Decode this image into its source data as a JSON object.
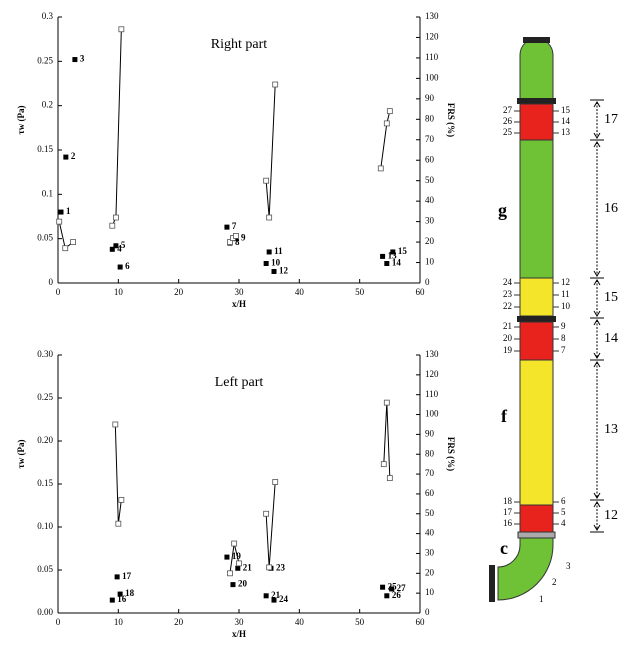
{
  "chart_data": [
    {
      "type": "scatter",
      "title": "Right part",
      "x_label": "x/H",
      "y_label": "τw (Pa)",
      "y2_label": "FRS (%)",
      "xlim": [
        0,
        60
      ],
      "xticks": [
        0,
        10,
        20,
        30,
        40,
        50,
        60
      ],
      "ylim": [
        0,
        0.3
      ],
      "yticks": [
        0,
        0.05,
        0.1,
        0.15,
        0.2,
        0.25,
        0.3
      ],
      "y2lim": [
        0,
        130
      ],
      "y2ticks": [
        0,
        10,
        20,
        30,
        40,
        50,
        60,
        70,
        80,
        90,
        100,
        110,
        120,
        130
      ],
      "series": [
        {
          "marker": "filled",
          "color": "#000000",
          "x": [
            0.5,
            1.3,
            2.8,
            9.0,
            9.6,
            10.3,
            28.0,
            28.5,
            29.5,
            34.5,
            35.0,
            35.8,
            53.8,
            54.5,
            55.5
          ],
          "values": [
            0.08,
            0.142,
            0.252,
            0.038,
            0.042,
            0.018,
            0.063,
            0.045,
            0.05,
            0.022,
            0.035,
            0.013,
            0.03,
            0.022,
            0.035
          ],
          "point_labels": [
            "1",
            "2",
            "3",
            "4",
            "5",
            "6",
            "7",
            "8",
            "9",
            "10",
            "11",
            "12",
            "13",
            "14",
            "15"
          ]
        },
        {
          "marker": "open",
          "axis": "y2",
          "line": true,
          "color": "#000000",
          "x": [
            0.2,
            1.2,
            2.5
          ],
          "values": [
            30,
            17,
            20
          ]
        },
        {
          "marker": "open",
          "axis": "y2",
          "line": true,
          "color": "#000000",
          "x": [
            9.0,
            9.6,
            10.5
          ],
          "values": [
            28,
            32,
            124
          ]
        },
        {
          "marker": "open",
          "axis": "y2",
          "line": true,
          "color": "#000000",
          "x": [
            28.5,
            29.0,
            29.5
          ],
          "values": [
            20,
            22,
            23
          ]
        },
        {
          "marker": "open",
          "axis": "y2",
          "line": true,
          "color": "#000000",
          "x": [
            34.5,
            35.0,
            36.0
          ],
          "values": [
            50,
            32,
            97
          ]
        },
        {
          "marker": "open",
          "axis": "y2",
          "line": true,
          "color": "#000000",
          "x": [
            53.5,
            54.5,
            55.0
          ],
          "values": [
            56,
            78,
            84
          ]
        }
      ]
    },
    {
      "type": "scatter",
      "title": "Left part",
      "x_label": "x/H",
      "y_label": "τw (Pa)",
      "y2_label": "FRS (%)",
      "xlim": [
        0,
        60
      ],
      "xticks": [
        0,
        10,
        20,
        30,
        40,
        50,
        60
      ],
      "ylim": [
        0,
        0.3
      ],
      "yticks": [
        {
          "value": 0,
          "label": "0.00"
        },
        {
          "value": 0.05,
          "label": "0.05"
        },
        {
          "value": 0.1,
          "label": "0.10"
        },
        {
          "value": 0.15,
          "label": "0.15"
        },
        {
          "value": 0.2,
          "label": "0.20"
        },
        {
          "value": 0.25,
          "label": "0.25"
        },
        {
          "value": 0.3,
          "label": "0.30"
        }
      ],
      "y2lim": [
        0,
        130
      ],
      "y2ticks": [
        0,
        10,
        20,
        30,
        40,
        50,
        60,
        70,
        80,
        90,
        100,
        110,
        120,
        130
      ],
      "series": [
        {
          "marker": "filled",
          "color": "#000000",
          "x": [
            9.0,
            9.8,
            10.3,
            28.0,
            29.0,
            29.8,
            34.5,
            35.3,
            35.8,
            53.8,
            54.5,
            55.3
          ],
          "values": [
            0.015,
            0.042,
            0.022,
            0.065,
            0.033,
            0.052,
            0.02,
            0.052,
            0.015,
            0.03,
            0.02,
            0.028
          ],
          "point_labels": [
            "16",
            "17",
            "18",
            "19",
            "20",
            "21",
            "21",
            "23",
            "24",
            "25",
            "26",
            "27"
          ]
        },
        {
          "marker": "open",
          "axis": "y2",
          "line": true,
          "color": "#000000",
          "x": [
            9.5,
            10.0,
            10.5
          ],
          "values": [
            95,
            45,
            57
          ]
        },
        {
          "marker": "open",
          "axis": "y2",
          "line": true,
          "color": "#000000",
          "x": [
            28.5,
            29.2,
            30.0
          ],
          "values": [
            20,
            35,
            25
          ]
        },
        {
          "marker": "open",
          "axis": "y2",
          "line": true,
          "color": "#000000",
          "x": [
            34.5,
            35.0,
            36.0
          ],
          "values": [
            50,
            23,
            66
          ]
        },
        {
          "marker": "open",
          "axis": "y2",
          "line": true,
          "color": "#000000",
          "x": [
            54.0,
            54.5,
            55.0
          ],
          "values": [
            75,
            106,
            68
          ]
        }
      ]
    }
  ],
  "diagram": {
    "letters": [
      "g",
      "f",
      "c"
    ],
    "groups": [
      {
        "left": [
          "27",
          "26",
          "25"
        ],
        "right": [
          "15",
          "14",
          "13"
        ]
      },
      {
        "left": [
          "24",
          "23",
          "22"
        ],
        "right": [
          "12",
          "11",
          "10"
        ]
      },
      {
        "left": [
          "21",
          "20",
          "19"
        ],
        "right": [
          "9",
          "8",
          "7"
        ]
      },
      {
        "left": [
          "18",
          "17",
          "16"
        ],
        "right": [
          "6",
          "5",
          "4"
        ]
      }
    ],
    "spans": [
      "17",
      "16",
      "15",
      "14",
      "13",
      "12"
    ],
    "bend": [
      "3",
      "2",
      "1"
    ]
  }
}
